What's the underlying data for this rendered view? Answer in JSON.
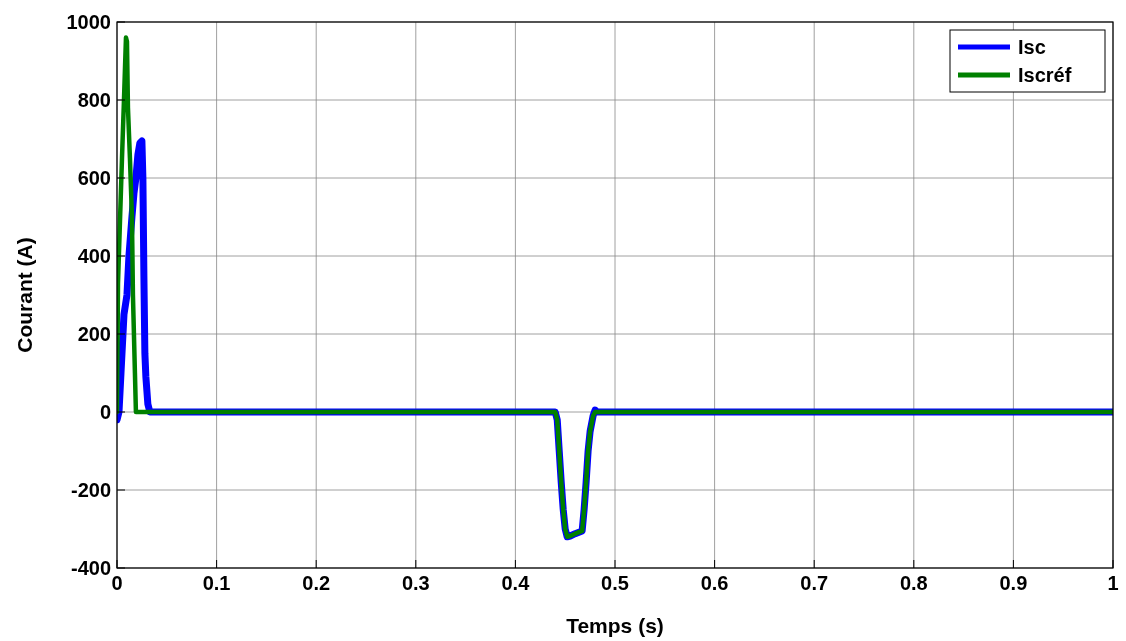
{
  "chart_data": {
    "type": "line",
    "xlabel": "Temps (s)",
    "ylabel": "Courant (A)",
    "xlim": [
      0,
      1
    ],
    "ylim": [
      -400,
      1000
    ],
    "xticks": [
      0,
      0.1,
      0.2,
      0.3,
      0.4,
      0.5,
      0.6,
      0.7,
      0.8,
      0.9,
      1
    ],
    "yticks": [
      -400,
      -200,
      0,
      200,
      400,
      600,
      800,
      1000
    ],
    "grid": true,
    "legend": "top right",
    "line_style": "solid",
    "series": [
      {
        "name": "Isc",
        "color": "#0000ff",
        "x": [
          0,
          0.002,
          0.004,
          0.007,
          0.01,
          0.012,
          0.015,
          0.017,
          0.019,
          0.021,
          0.023,
          0.025,
          0.026,
          0.027,
          0.028,
          0.029,
          0.031,
          0.033,
          0.04,
          0.44,
          0.442,
          0.444,
          0.446,
          0.448,
          0.45,
          0.452,
          0.455,
          0.46,
          0.467,
          0.469,
          0.471,
          0.473,
          0.475,
          0.478,
          0.48,
          0.482,
          1
        ],
        "values": [
          -20,
          0,
          100,
          250,
          300,
          400,
          500,
          560,
          600,
          660,
          690,
          695,
          600,
          350,
          150,
          90,
          20,
          0,
          0,
          0,
          -20,
          -100,
          -180,
          -250,
          -300,
          -320,
          -318,
          -312,
          -305,
          -250,
          -180,
          -100,
          -50,
          -10,
          5,
          0,
          0
        ]
      },
      {
        "name": "Iscréf",
        "color": "#008000",
        "x": [
          0,
          0.001,
          0.003,
          0.005,
          0.007,
          0.009,
          0.01,
          0.011,
          0.013,
          0.015,
          0.016,
          0.018,
          0.019,
          0.44,
          0.442,
          0.444,
          0.446,
          0.448,
          0.45,
          0.452,
          0.455,
          0.46,
          0.467,
          0.469,
          0.471,
          0.473,
          0.475,
          0.478,
          0.48,
          1
        ],
        "values": [
          0,
          330,
          490,
          650,
          800,
          960,
          950,
          780,
          650,
          500,
          300,
          100,
          0,
          0,
          -20,
          -100,
          -180,
          -250,
          -300,
          -320,
          -318,
          -312,
          -305,
          -250,
          -180,
          -100,
          -50,
          -10,
          0,
          0
        ]
      }
    ]
  }
}
